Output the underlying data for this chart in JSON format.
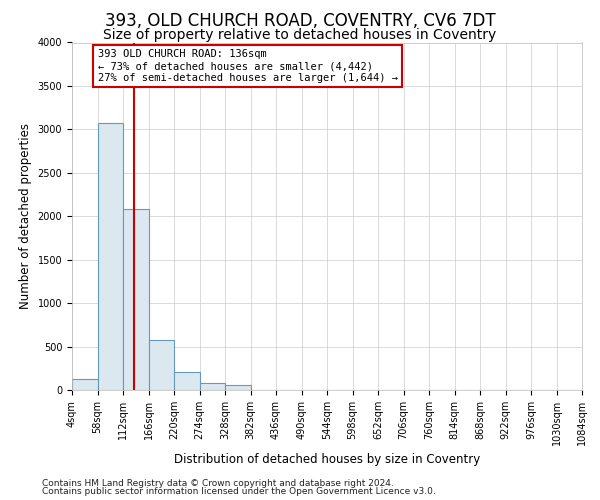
{
  "title1": "393, OLD CHURCH ROAD, COVENTRY, CV6 7DT",
  "title2": "Size of property relative to detached houses in Coventry",
  "xlabel": "Distribution of detached houses by size in Coventry",
  "ylabel": "Number of detached properties",
  "bar_color": "#dce8f0",
  "bar_edge_color": "#6699bb",
  "bin_edges": [
    4,
    58,
    112,
    166,
    220,
    274,
    328,
    382,
    436,
    490,
    544,
    598,
    652,
    706,
    760,
    814,
    868,
    922,
    976,
    1030,
    1084
  ],
  "bar_heights": [
    130,
    3070,
    2080,
    570,
    210,
    80,
    55,
    0,
    0,
    0,
    0,
    0,
    0,
    0,
    0,
    0,
    0,
    0,
    0,
    0
  ],
  "property_size": 136,
  "red_line_color": "#cc0000",
  "annotation_line1": "393 OLD CHURCH ROAD: 136sqm",
  "annotation_line2": "← 73% of detached houses are smaller (4,442)",
  "annotation_line3": "27% of semi-detached houses are larger (1,644) →",
  "annotation_box_color": "#cc0000",
  "ylim": [
    0,
    4000
  ],
  "yticks": [
    0,
    500,
    1000,
    1500,
    2000,
    2500,
    3000,
    3500,
    4000
  ],
  "footer1": "Contains HM Land Registry data © Crown copyright and database right 2024.",
  "footer2": "Contains public sector information licensed under the Open Government Licence v3.0.",
  "background_color": "#ffffff",
  "grid_color": "#cccccc",
  "title1_fontsize": 12,
  "title2_fontsize": 10,
  "tick_fontsize": 7,
  "axis_label_fontsize": 8.5,
  "footer_fontsize": 6.5,
  "annotation_fontsize": 7.5
}
